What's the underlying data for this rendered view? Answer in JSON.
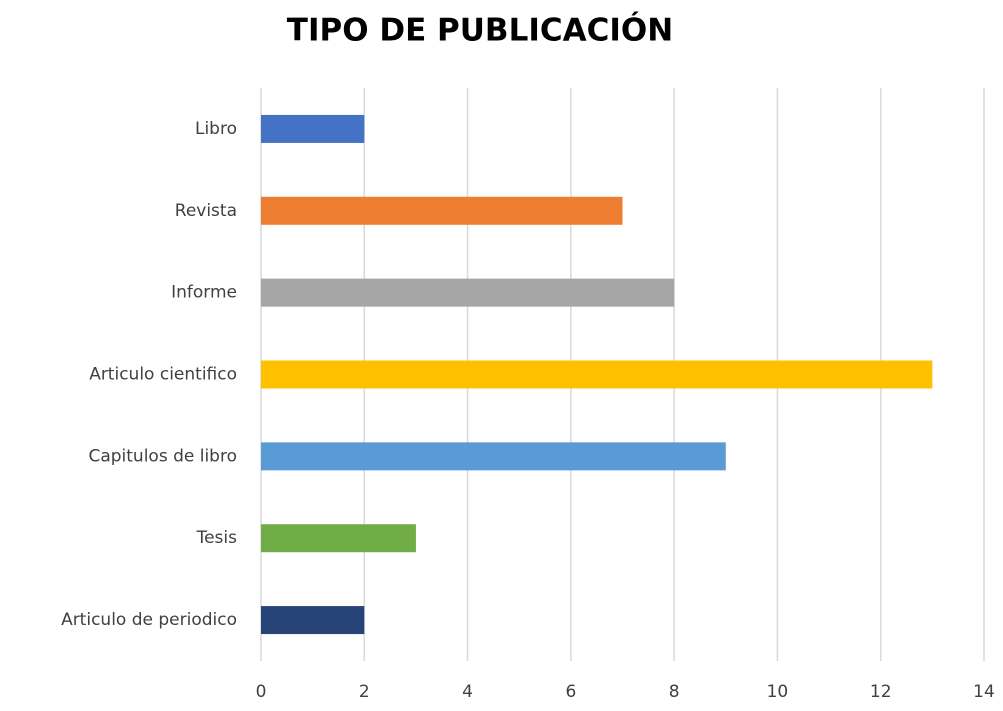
{
  "chart_data": {
    "type": "bar",
    "orientation": "horizontal",
    "title": "TIPO DE PUBLICACIÓN",
    "categories": [
      "Libro",
      "Revista",
      "Informe",
      "Articulo cientifico",
      "Capitulos de libro",
      "Tesis",
      "Articulo de periodico"
    ],
    "values": [
      2,
      7,
      8,
      13,
      9,
      3,
      2
    ],
    "colors": [
      "#4472c4",
      "#ed7d31",
      "#a5a5a5",
      "#ffc000",
      "#5b9bd5",
      "#70ad47",
      "#264478"
    ],
    "xlim": [
      0,
      14
    ],
    "xticks": [
      0,
      2,
      4,
      6,
      8,
      10,
      12,
      14
    ],
    "grid": true
  }
}
